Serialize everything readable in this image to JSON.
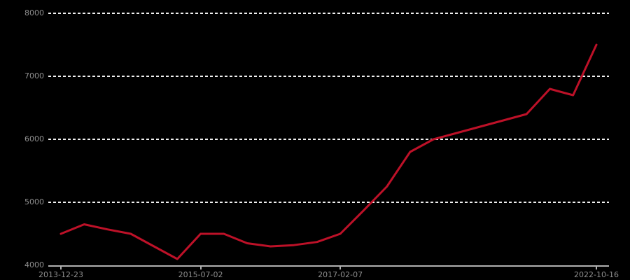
{
  "chart_data": {
    "type": "line",
    "title": "",
    "legend": "none",
    "grid": "horizontal-dotted",
    "background_color": "#000000",
    "axis_color": "#b0b0b0",
    "label_color": "#8f8f8f",
    "gridline_color": "#f0f0f0",
    "ylim": [
      4000,
      8000
    ],
    "y_ticks": [
      4000,
      5000,
      6000,
      7000,
      8000
    ],
    "x_tick_indices": [
      0,
      6,
      12,
      23
    ],
    "x_tick_labels": [
      "2013-12-23",
      "2015-07-02",
      "2017-02-07",
      "2022-10-16"
    ],
    "series": [
      {
        "name": "series-1",
        "color": "#bd1128",
        "values": [
          4500,
          4650,
          4570,
          4500,
          4300,
          4100,
          4500,
          4500,
          4350,
          4300,
          4320,
          4370,
          4500,
          4870,
          5250,
          5800,
          6000,
          6100,
          6200,
          6300,
          6400,
          6800,
          6700,
          7500
        ]
      }
    ]
  }
}
